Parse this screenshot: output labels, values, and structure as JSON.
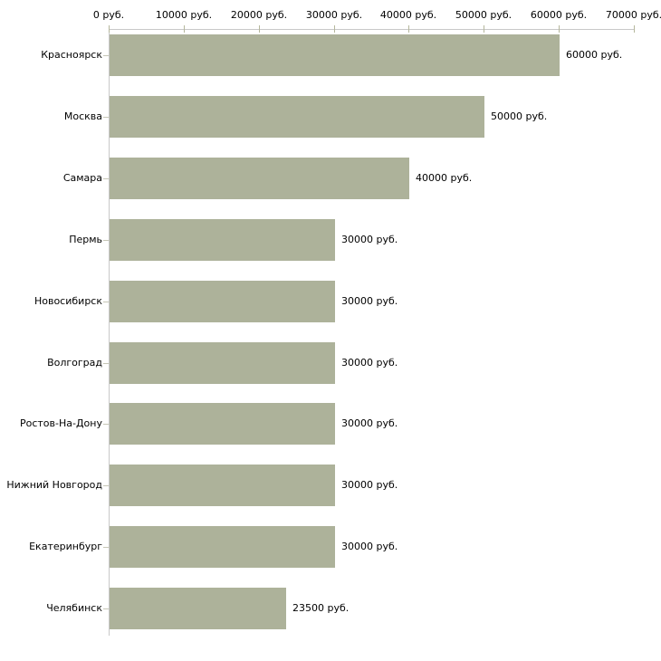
{
  "chart_data": {
    "type": "bar",
    "orientation": "horizontal",
    "categories": [
      "Красноярск",
      "Москва",
      "Самара",
      "Пермь",
      "Новосибирск",
      "Волгоград",
      "Ростов-На-Дону",
      "Нижний Новгород",
      "Екатеринбург",
      "Челябинск"
    ],
    "values": [
      60000,
      50000,
      40000,
      30000,
      30000,
      30000,
      30000,
      30000,
      30000,
      23500
    ],
    "bar_labels": [
      "60000 руб.",
      "50000 руб.",
      "40000 руб.",
      "30000 руб.",
      "30000 руб.",
      "30000 руб.",
      "30000 руб.",
      "30000 руб.",
      "30000 руб.",
      "23500 руб."
    ],
    "x_tick_values": [
      0,
      10000,
      20000,
      30000,
      40000,
      50000,
      60000,
      70000
    ],
    "x_tick_labels": [
      "0 руб.",
      "10000 руб.",
      "20000 руб.",
      "30000 руб.",
      "40000 руб.",
      "50000 руб.",
      "60000 руб.",
      "70000 руб."
    ],
    "xlim": [
      0,
      70000
    ],
    "unit": "руб.",
    "title": "",
    "xlabel": "",
    "ylabel": "",
    "grid": false,
    "legend": "none",
    "colors": {
      "bar": "#adb29a",
      "axis_line": "#c8c8c8",
      "x_tick": "#b5b79c",
      "y_tick": "#c6c6b6",
      "text": "#000000",
      "background": "#ffffff"
    }
  }
}
